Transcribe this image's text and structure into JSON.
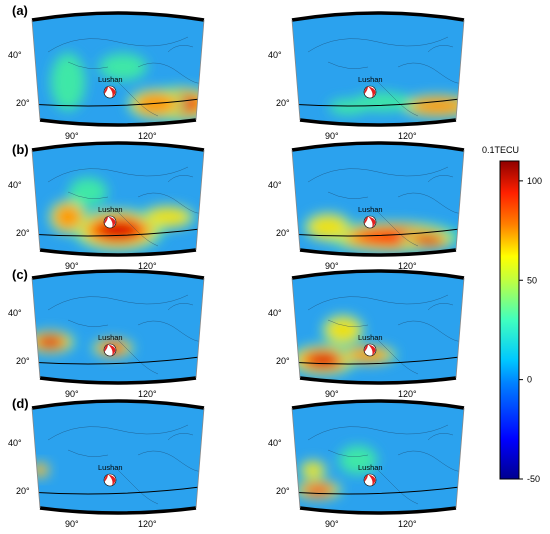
{
  "panel_labels": [
    "(a)",
    "(b)",
    "(c)",
    "(d)"
  ],
  "place_name": "Lushan",
  "lat_ticks": [
    "40°",
    "20°"
  ],
  "lon_ticks": [
    "90°",
    "120°"
  ],
  "colorbar": {
    "unit": "0.1TECU",
    "ticks": [
      "100",
      "50",
      "0",
      "-50"
    ],
    "min": -50,
    "max": 110
  },
  "background_color": "#2ba2ee",
  "epicenter_marker": "focal-mechanism-beachball",
  "rows": [
    {
      "label": "(a)",
      "left_anomaly": "strong high over southeast (South China Sea)",
      "right_anomaly": "moderate high along 20° band"
    },
    {
      "label": "(b)",
      "left_anomaly": "strong high centered near epicenter band",
      "right_anomaly": "strong high along 20° band"
    },
    {
      "label": "(c)",
      "left_anomaly": "high over west near 20°",
      "right_anomaly": "high over southwest near 20°"
    },
    {
      "label": "(d)",
      "left_anomaly": "weak, small patch at far west",
      "right_anomaly": "weak, along southwest edge"
    }
  ]
}
